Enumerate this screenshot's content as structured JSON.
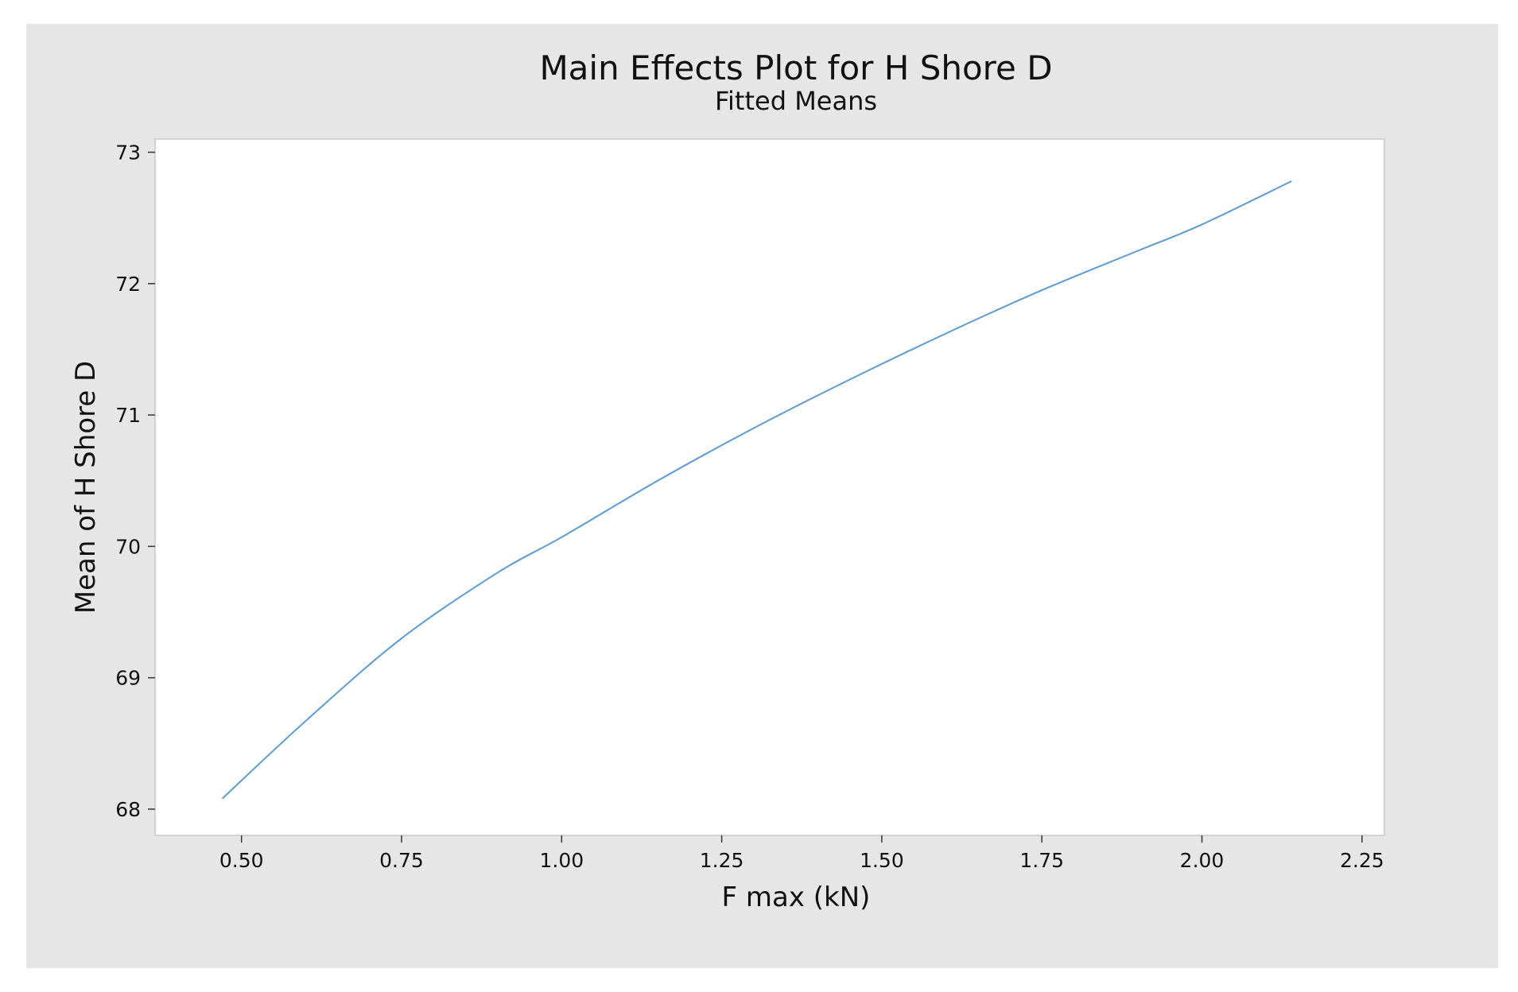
{
  "chart_data": {
    "type": "line",
    "title": "Main Effects Plot for H Shore D",
    "subtitle": "Fitted Means",
    "xlabel": "F max (kN)",
    "ylabel": "Mean of H Shore D",
    "xlim": [
      0.365,
      2.285
    ],
    "ylim": [
      67.8,
      73.1
    ],
    "xticks": [
      0.5,
      0.75,
      1.0,
      1.25,
      1.5,
      1.75,
      2.0,
      2.25
    ],
    "xtick_labels": [
      "0.50",
      "0.75",
      "1.00",
      "1.25",
      "1.50",
      "1.75",
      "2.00",
      "2.25"
    ],
    "yticks": [
      68,
      69,
      70,
      71,
      72,
      73
    ],
    "ytick_labels": [
      "68",
      "69",
      "70",
      "71",
      "72",
      "73"
    ],
    "grid": false,
    "series": [
      {
        "color": "#5b9bd5",
        "x": [
          0.47,
          0.6,
          0.75,
          0.9,
          1.0,
          1.15,
          1.3,
          1.45,
          1.6,
          1.75,
          1.9,
          2.0,
          2.14
        ],
        "y": [
          68.08,
          68.67,
          69.3,
          69.8,
          70.07,
          70.5,
          70.9,
          71.27,
          71.62,
          71.95,
          72.25,
          72.45,
          72.78
        ]
      }
    ]
  }
}
